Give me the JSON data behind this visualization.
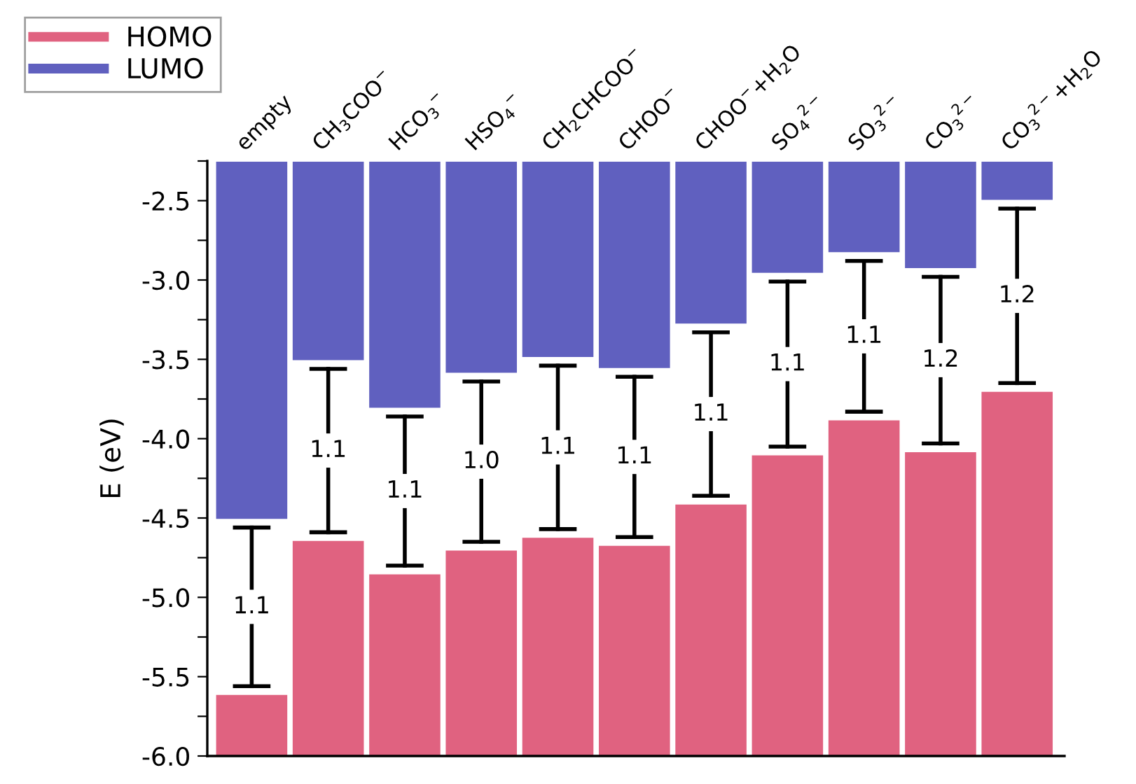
{
  "chart_data": {
    "type": "bar",
    "ylabel": "E (eV)",
    "categories": [
      "empty",
      "CH$_{3}$COO$^{−}$",
      "HCO$_{3}$$^{−}$",
      "HSO$_{4}$$^{−}$",
      "CH$_{2}$CHCOO$^{−}$",
      "CHOO$^{−}$",
      "CHOO$^{−}$+H$_{2}$O",
      "SO$_{4}$$^{2−}$",
      "SO$_{3}$$^{2−}$",
      "CO$_{3}$$^{2−}$",
      "CO$_{3}$$^{2−}$+H$_{2}$O"
    ],
    "series": [
      {
        "name": "HOMO",
        "color": "#e06280",
        "base": [
          -6.0,
          -6.0,
          -6.0,
          -6.0,
          -6.0,
          -6.0,
          -6.0,
          -6.0,
          -6.0,
          -6.0,
          -6.0
        ],
        "values": [
          0.39,
          1.36,
          1.15,
          1.3,
          1.38,
          1.33,
          1.59,
          1.9,
          2.12,
          1.92,
          2.3
        ]
      },
      {
        "name": "LUMO",
        "color": "#6060bf",
        "base": [
          -2.25,
          -2.25,
          -2.25,
          -2.25,
          -2.25,
          -2.25,
          -2.25,
          -2.25,
          -2.25,
          -2.25,
          -2.25
        ],
        "values": [
          -2.26,
          -1.26,
          -1.56,
          -1.34,
          -1.24,
          -1.31,
          -1.03,
          -0.71,
          -0.58,
          -0.68,
          -0.25
        ]
      }
    ],
    "ylim": [
      -6.0,
      -2.25
    ],
    "yticks": [
      {
        "value": -6.0,
        "label": "-6.0"
      },
      {
        "value": -5.75,
        "label": null
      },
      -5.5,
      {
        "value": -5.25,
        "label": null
      },
      {
        "value": -5.0,
        "label": "-5.0"
      },
      {
        "value": -4.75,
        "label": null
      },
      -4.5,
      {
        "value": -4.25,
        "label": null
      },
      {
        "value": -4.0,
        "label": "-4.0"
      },
      {
        "value": -3.75,
        "label": null
      },
      -3.5,
      {
        "value": -3.25,
        "label": null
      },
      {
        "value": -3.0,
        "label": "-3.0"
      },
      {
        "value": -2.75,
        "label": null
      },
      -2.5,
      {
        "value": -2.25,
        "label": null
      }
    ],
    "annotations": [
      "1.1",
      "1.1",
      "1.1",
      "1.0",
      "1.1",
      "1.1",
      "1.1",
      "1.1",
      "1.1",
      "1.2",
      "1.2"
    ],
    "legend": "top left",
    "grid": false
  }
}
